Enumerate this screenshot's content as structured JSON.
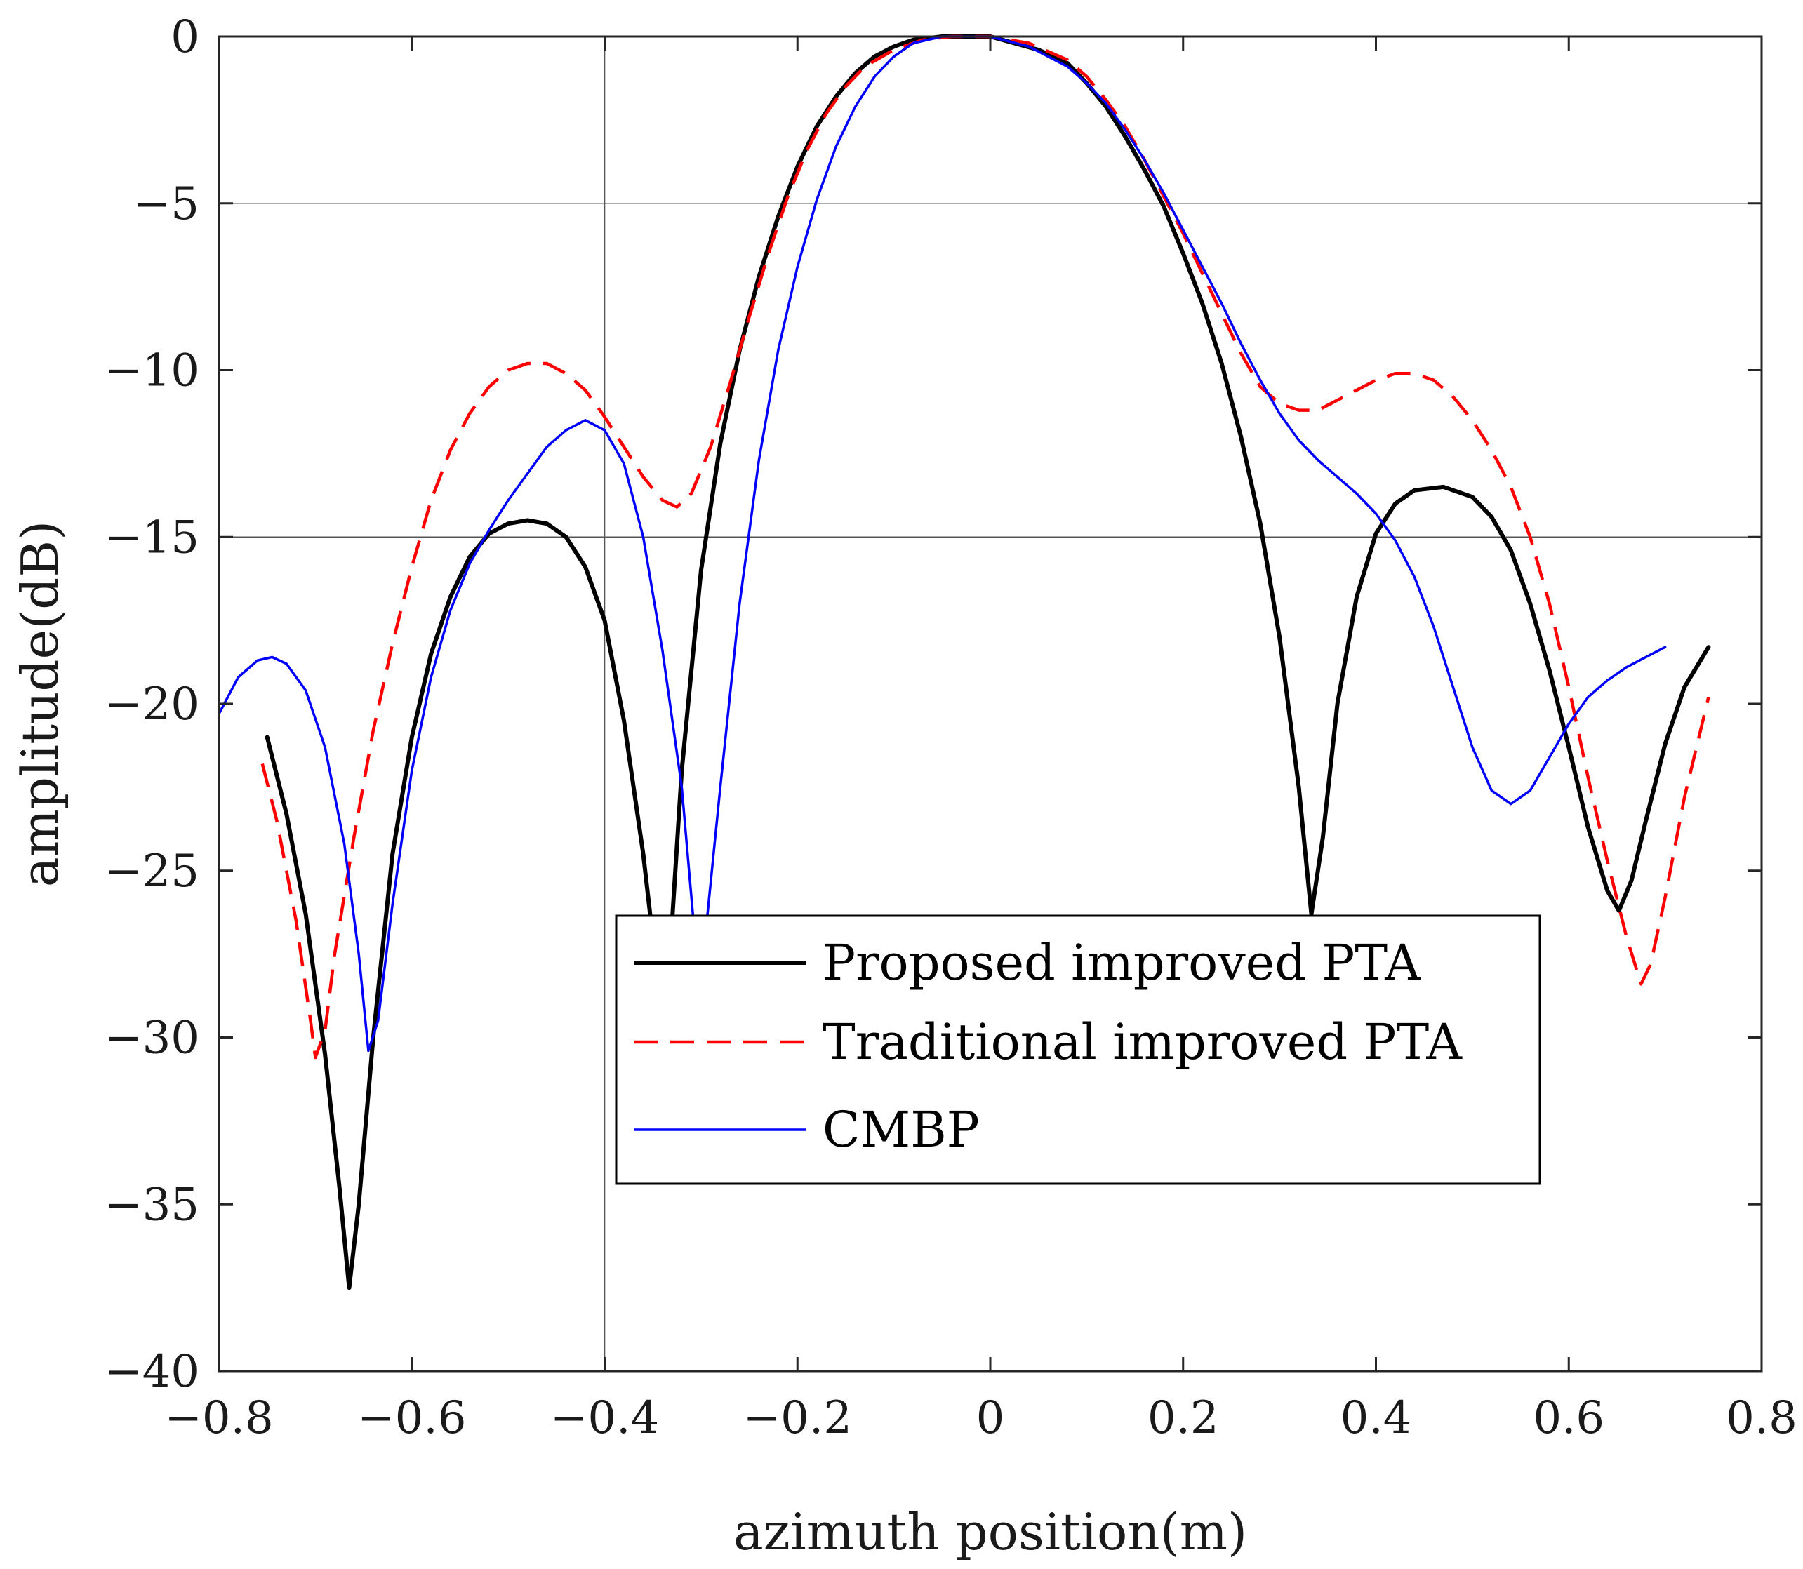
{
  "chart_data": {
    "type": "line",
    "title": "",
    "xlabel": "azimuth position(m)",
    "ylabel": "amplitude(dB)",
    "xlim": [
      -0.8,
      0.8
    ],
    "ylim": [
      -40,
      0
    ],
    "xticks": [
      -0.8,
      -0.6,
      -0.4,
      -0.2,
      0,
      0.2,
      0.4,
      0.6,
      0.8
    ],
    "yticks": [
      0,
      -5,
      -10,
      -15,
      -20,
      -25,
      -30,
      -35,
      -40
    ],
    "xtick_labels": [
      "−0.8",
      "−0.6",
      "−0.4",
      "−0.2",
      "0",
      "0.2",
      "0.4",
      "0.6",
      "0.8"
    ],
    "ytick_labels": [
      "0",
      "−5",
      "−10",
      "−15",
      "−20",
      "−25",
      "−30",
      "−35",
      "−40"
    ],
    "reference_lines": {
      "horizontal": [
        -5,
        -15
      ],
      "vertical": [
        -0.4
      ]
    },
    "legend_position": "lower-center",
    "series": [
      {
        "name": "Proposed improved PTA",
        "color": "#000000",
        "style": "solid",
        "points": [
          [
            -0.75,
            -21.0
          ],
          [
            -0.73,
            -23.3
          ],
          [
            -0.71,
            -26.3
          ],
          [
            -0.69,
            -30.5
          ],
          [
            -0.675,
            -34.5
          ],
          [
            -0.665,
            -37.5
          ],
          [
            -0.655,
            -35.0
          ],
          [
            -0.64,
            -30.0
          ],
          [
            -0.62,
            -24.5
          ],
          [
            -0.6,
            -21.0
          ],
          [
            -0.58,
            -18.5
          ],
          [
            -0.56,
            -16.8
          ],
          [
            -0.54,
            -15.6
          ],
          [
            -0.52,
            -14.9
          ],
          [
            -0.5,
            -14.6
          ],
          [
            -0.48,
            -14.5
          ],
          [
            -0.46,
            -14.6
          ],
          [
            -0.44,
            -15.0
          ],
          [
            -0.42,
            -15.9
          ],
          [
            -0.4,
            -17.5
          ],
          [
            -0.38,
            -20.5
          ],
          [
            -0.36,
            -24.5
          ],
          [
            -0.352,
            -26.5
          ],
          [
            -0.33,
            -26.5
          ],
          [
            -0.32,
            -22.0
          ],
          [
            -0.3,
            -16.0
          ],
          [
            -0.28,
            -12.2
          ],
          [
            -0.26,
            -9.4
          ],
          [
            -0.24,
            -7.2
          ],
          [
            -0.22,
            -5.4
          ],
          [
            -0.2,
            -3.9
          ],
          [
            -0.18,
            -2.7
          ],
          [
            -0.16,
            -1.8
          ],
          [
            -0.14,
            -1.1
          ],
          [
            -0.12,
            -0.6
          ],
          [
            -0.1,
            -0.3
          ],
          [
            -0.08,
            -0.1
          ],
          [
            -0.05,
            0.0
          ],
          [
            0.0,
            0.0
          ],
          [
            0.05,
            -0.4
          ],
          [
            0.08,
            -0.8
          ],
          [
            0.1,
            -1.4
          ],
          [
            0.12,
            -2.1
          ],
          [
            0.14,
            -3.0
          ],
          [
            0.16,
            -4.0
          ],
          [
            0.18,
            -5.1
          ],
          [
            0.2,
            -6.5
          ],
          [
            0.22,
            -8.0
          ],
          [
            0.24,
            -9.8
          ],
          [
            0.26,
            -12.0
          ],
          [
            0.28,
            -14.6
          ],
          [
            0.3,
            -18.0
          ],
          [
            0.32,
            -22.5
          ],
          [
            0.333,
            -26.3
          ],
          [
            0.345,
            -24.0
          ],
          [
            0.36,
            -20.0
          ],
          [
            0.38,
            -16.8
          ],
          [
            0.4,
            -14.9
          ],
          [
            0.42,
            -14.0
          ],
          [
            0.44,
            -13.6
          ],
          [
            0.47,
            -13.5
          ],
          [
            0.5,
            -13.8
          ],
          [
            0.52,
            -14.4
          ],
          [
            0.54,
            -15.4
          ],
          [
            0.56,
            -17.0
          ],
          [
            0.58,
            -19.0
          ],
          [
            0.6,
            -21.3
          ],
          [
            0.62,
            -23.7
          ],
          [
            0.64,
            -25.6
          ],
          [
            0.652,
            -26.2
          ],
          [
            0.665,
            -25.3
          ],
          [
            0.68,
            -23.5
          ],
          [
            0.7,
            -21.2
          ],
          [
            0.72,
            -19.5
          ],
          [
            0.745,
            -18.3
          ]
        ]
      },
      {
        "name": "Traditional improved PTA",
        "color": "#ff0000",
        "style": "dashed",
        "points": [
          [
            -0.755,
            -21.8
          ],
          [
            -0.74,
            -23.5
          ],
          [
            -0.72,
            -26.5
          ],
          [
            -0.705,
            -29.5
          ],
          [
            -0.7,
            -30.6
          ],
          [
            -0.69,
            -29.8
          ],
          [
            -0.68,
            -27.5
          ],
          [
            -0.66,
            -24.0
          ],
          [
            -0.64,
            -20.8
          ],
          [
            -0.62,
            -18.2
          ],
          [
            -0.6,
            -15.9
          ],
          [
            -0.58,
            -13.9
          ],
          [
            -0.56,
            -12.4
          ],
          [
            -0.54,
            -11.3
          ],
          [
            -0.52,
            -10.5
          ],
          [
            -0.5,
            -10.0
          ],
          [
            -0.48,
            -9.8
          ],
          [
            -0.46,
            -9.8
          ],
          [
            -0.44,
            -10.1
          ],
          [
            -0.42,
            -10.6
          ],
          [
            -0.4,
            -11.4
          ],
          [
            -0.38,
            -12.3
          ],
          [
            -0.36,
            -13.2
          ],
          [
            -0.34,
            -13.9
          ],
          [
            -0.325,
            -14.1
          ],
          [
            -0.31,
            -13.7
          ],
          [
            -0.29,
            -12.3
          ],
          [
            -0.27,
            -10.4
          ],
          [
            -0.25,
            -8.4
          ],
          [
            -0.23,
            -6.5
          ],
          [
            -0.21,
            -4.8
          ],
          [
            -0.19,
            -3.4
          ],
          [
            -0.17,
            -2.3
          ],
          [
            -0.15,
            -1.5
          ],
          [
            -0.13,
            -0.9
          ],
          [
            -0.1,
            -0.4
          ],
          [
            -0.07,
            -0.1
          ],
          [
            -0.04,
            0.0
          ],
          [
            0.0,
            0.0
          ],
          [
            0.04,
            -0.2
          ],
          [
            0.08,
            -0.7
          ],
          [
            0.1,
            -1.2
          ],
          [
            0.12,
            -1.9
          ],
          [
            0.14,
            -2.7
          ],
          [
            0.16,
            -3.7
          ],
          [
            0.18,
            -4.8
          ],
          [
            0.2,
            -5.9
          ],
          [
            0.22,
            -7.1
          ],
          [
            0.24,
            -8.3
          ],
          [
            0.26,
            -9.5
          ],
          [
            0.28,
            -10.5
          ],
          [
            0.3,
            -11.0
          ],
          [
            0.32,
            -11.2
          ],
          [
            0.34,
            -11.2
          ],
          [
            0.36,
            -10.9
          ],
          [
            0.38,
            -10.6
          ],
          [
            0.4,
            -10.3
          ],
          [
            0.42,
            -10.1
          ],
          [
            0.44,
            -10.1
          ],
          [
            0.46,
            -10.3
          ],
          [
            0.48,
            -10.8
          ],
          [
            0.5,
            -11.5
          ],
          [
            0.52,
            -12.4
          ],
          [
            0.54,
            -13.5
          ],
          [
            0.56,
            -15.0
          ],
          [
            0.58,
            -17.0
          ],
          [
            0.6,
            -19.5
          ],
          [
            0.62,
            -22.2
          ],
          [
            0.64,
            -24.7
          ],
          [
            0.66,
            -27.0
          ],
          [
            0.675,
            -28.4
          ],
          [
            0.685,
            -27.8
          ],
          [
            0.7,
            -25.8
          ],
          [
            0.72,
            -22.8
          ],
          [
            0.745,
            -19.8
          ]
        ]
      },
      {
        "name": "CMBP",
        "color": "#0000ff",
        "style": "solid",
        "points": [
          [
            -0.8,
            -20.3
          ],
          [
            -0.78,
            -19.2
          ],
          [
            -0.76,
            -18.7
          ],
          [
            -0.745,
            -18.6
          ],
          [
            -0.73,
            -18.8
          ],
          [
            -0.71,
            -19.6
          ],
          [
            -0.69,
            -21.3
          ],
          [
            -0.67,
            -24.2
          ],
          [
            -0.655,
            -27.5
          ],
          [
            -0.645,
            -30.4
          ],
          [
            -0.635,
            -29.5
          ],
          [
            -0.62,
            -26.0
          ],
          [
            -0.6,
            -22.0
          ],
          [
            -0.58,
            -19.2
          ],
          [
            -0.56,
            -17.2
          ],
          [
            -0.54,
            -15.8
          ],
          [
            -0.52,
            -14.8
          ],
          [
            -0.5,
            -13.9
          ],
          [
            -0.48,
            -13.1
          ],
          [
            -0.46,
            -12.3
          ],
          [
            -0.44,
            -11.8
          ],
          [
            -0.42,
            -11.5
          ],
          [
            -0.4,
            -11.8
          ],
          [
            -0.38,
            -12.8
          ],
          [
            -0.36,
            -15.0
          ],
          [
            -0.34,
            -18.4
          ],
          [
            -0.32,
            -22.5
          ],
          [
            -0.307,
            -26.8
          ],
          [
            -0.295,
            -26.8
          ],
          [
            -0.28,
            -22.5
          ],
          [
            -0.26,
            -17.0
          ],
          [
            -0.24,
            -12.7
          ],
          [
            -0.22,
            -9.4
          ],
          [
            -0.2,
            -6.9
          ],
          [
            -0.18,
            -4.9
          ],
          [
            -0.16,
            -3.3
          ],
          [
            -0.14,
            -2.1
          ],
          [
            -0.12,
            -1.2
          ],
          [
            -0.1,
            -0.6
          ],
          [
            -0.08,
            -0.2
          ],
          [
            -0.05,
            0.0
          ],
          [
            0.0,
            0.0
          ],
          [
            0.04,
            -0.3
          ],
          [
            0.08,
            -0.9
          ],
          [
            0.1,
            -1.4
          ],
          [
            0.12,
            -2.0
          ],
          [
            0.14,
            -2.8
          ],
          [
            0.16,
            -3.7
          ],
          [
            0.18,
            -4.7
          ],
          [
            0.2,
            -5.8
          ],
          [
            0.22,
            -6.9
          ],
          [
            0.24,
            -8.0
          ],
          [
            0.26,
            -9.2
          ],
          [
            0.28,
            -10.3
          ],
          [
            0.3,
            -11.3
          ],
          [
            0.32,
            -12.1
          ],
          [
            0.34,
            -12.7
          ],
          [
            0.36,
            -13.2
          ],
          [
            0.38,
            -13.7
          ],
          [
            0.4,
            -14.3
          ],
          [
            0.42,
            -15.1
          ],
          [
            0.44,
            -16.2
          ],
          [
            0.46,
            -17.7
          ],
          [
            0.48,
            -19.5
          ],
          [
            0.5,
            -21.3
          ],
          [
            0.52,
            -22.6
          ],
          [
            0.54,
            -23.0
          ],
          [
            0.56,
            -22.6
          ],
          [
            0.58,
            -21.6
          ],
          [
            0.6,
            -20.6
          ],
          [
            0.62,
            -19.8
          ],
          [
            0.64,
            -19.3
          ],
          [
            0.66,
            -18.9
          ],
          [
            0.68,
            -18.6
          ],
          [
            0.7,
            -18.3
          ]
        ]
      }
    ]
  }
}
